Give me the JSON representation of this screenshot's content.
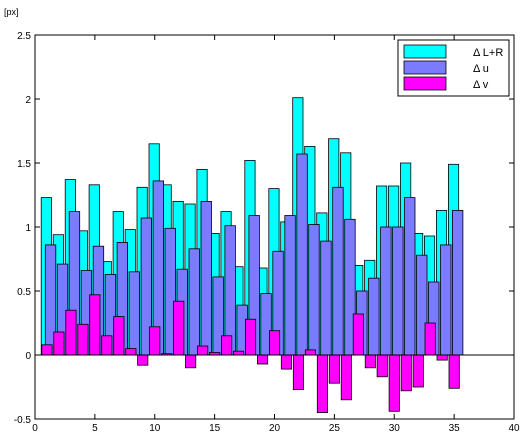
{
  "chart_data": {
    "type": "bar",
    "ylabel": "[px]",
    "xlim": [
      0,
      40
    ],
    "ylim": [
      -0.5,
      2.5
    ],
    "x_ticks": [
      "0",
      "5",
      "10",
      "15",
      "20",
      "25",
      "30",
      "35",
      "40"
    ],
    "y_ticks": [
      "-0.5",
      "0",
      "0.5",
      "1",
      "1.5",
      "2",
      "2.5"
    ],
    "grid": false,
    "legend_position": "top-right",
    "x": [
      1,
      2,
      3,
      4,
      5,
      6,
      7,
      8,
      9,
      10,
      11,
      12,
      13,
      14,
      15,
      16,
      17,
      18,
      19,
      20,
      21,
      22,
      23,
      24,
      25,
      26,
      27,
      28,
      29,
      30,
      31,
      32,
      33,
      34,
      35,
      36
    ],
    "series": [
      {
        "name": "Δ L+R",
        "color": "#00ffff",
        "values": [
          1.23,
          0.94,
          1.37,
          0.97,
          1.33,
          0.73,
          1.12,
          0.98,
          1.31,
          1.65,
          1.33,
          1.2,
          1.18,
          1.45,
          0.95,
          1.12,
          0.69,
          1.52,
          0.68,
          1.3,
          1.04,
          2.01,
          1.63,
          1.11,
          1.69,
          1.58,
          0.7,
          0.74,
          1.32,
          1.32,
          1.5,
          0.95,
          0.93,
          1.13,
          1.49,
          0.0
        ]
      },
      {
        "name": "Δ u",
        "color": "#7b7bff",
        "values": [
          0.86,
          0.71,
          1.12,
          0.66,
          0.85,
          0.63,
          0.88,
          0.65,
          1.07,
          1.36,
          0.99,
          0.67,
          0.83,
          1.2,
          0.61,
          1.01,
          0.39,
          1.09,
          0.48,
          0.81,
          1.09,
          1.57,
          1.02,
          0.89,
          1.31,
          1.06,
          0.5,
          0.6,
          1.0,
          1.0,
          1.23,
          0.78,
          0.57,
          0.86,
          1.13,
          0.0
        ]
      },
      {
        "name": "Δ v",
        "color": "#ff00ff",
        "values": [
          0.08,
          0.18,
          0.35,
          0.24,
          0.47,
          0.15,
          0.3,
          0.05,
          -0.08,
          0.22,
          0.01,
          0.42,
          -0.1,
          0.07,
          0.02,
          0.15,
          0.03,
          0.28,
          -0.07,
          0.19,
          -0.11,
          -0.27,
          0.04,
          -0.45,
          -0.22,
          -0.35,
          0.32,
          -0.1,
          -0.17,
          -0.44,
          -0.28,
          -0.25,
          0.25,
          -0.04,
          -0.26,
          0.0
        ]
      }
    ]
  }
}
